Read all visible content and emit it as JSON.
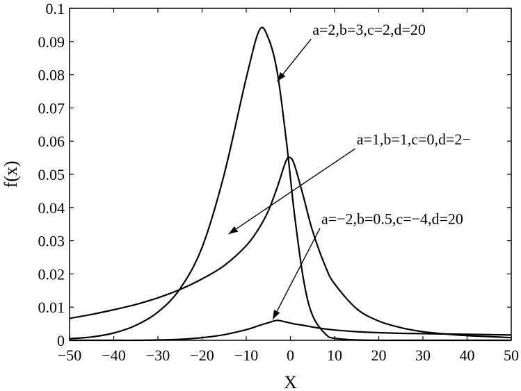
{
  "chart_data": {
    "type": "line",
    "title": "",
    "xlabel": "X",
    "ylabel": "f(x)",
    "xlim": [
      -50,
      50
    ],
    "ylim": [
      0,
      0.1
    ],
    "x_ticks": [
      "−50",
      "−40",
      "−30",
      "−20",
      "−10",
      "0",
      "10",
      "20",
      "30",
      "40",
      "50"
    ],
    "y_ticks": [
      "0",
      "0.01",
      "0.02",
      "0.03",
      "0.04",
      "0.05",
      "0.06",
      "0.07",
      "0.08",
      "0.09",
      "0.1"
    ],
    "grid": false,
    "legend": "none",
    "x": [
      -50,
      -45,
      -40,
      -35,
      -30,
      -25,
      -20,
      -15,
      -10,
      -7,
      -5,
      -3,
      -1,
      0,
      1,
      3,
      5,
      8,
      10,
      15,
      20,
      25,
      30,
      35,
      40,
      45,
      50
    ],
    "series": [
      {
        "values": [
          0.0005,
          0.001,
          0.0022,
          0.0045,
          0.0085,
          0.0155,
          0.028,
          0.05,
          0.079,
          0.0935,
          0.091,
          0.081,
          0.061,
          0.049,
          0.037,
          0.018,
          0.0075,
          0.0018,
          0.0006,
          0.0001,
          0.0,
          0.0,
          0.0,
          0.0,
          0.0,
          0.0,
          0.0
        ]
      },
      {
        "values": [
          0.0066,
          0.0078,
          0.0092,
          0.0108,
          0.0128,
          0.0153,
          0.0185,
          0.0225,
          0.0285,
          0.034,
          0.039,
          0.046,
          0.054,
          0.055,
          0.0525,
          0.043,
          0.033,
          0.022,
          0.017,
          0.0095,
          0.0058,
          0.0038,
          0.0026,
          0.0019,
          0.0014,
          0.0011,
          0.0008
        ]
      },
      {
        "values": [
          0.0,
          0.0,
          0.0,
          0.0,
          0.0001,
          0.0003,
          0.0008,
          0.0017,
          0.0032,
          0.0045,
          0.0053,
          0.006,
          0.0055,
          0.0052,
          0.0049,
          0.0045,
          0.004,
          0.0034,
          0.0031,
          0.0026,
          0.0023,
          0.0021,
          0.002,
          0.0019,
          0.0018,
          0.0017,
          0.0016
        ]
      }
    ],
    "annotations": [
      {
        "text": "a=2,b=3,c=2,d=20",
        "x": 5,
        "y": 0.092,
        "arrow_to": {
          "x": -3,
          "y": 0.078
        }
      },
      {
        "text": "a=1,b=1,c=0,d=2−",
        "x": 15,
        "y": 0.059,
        "arrow_to": {
          "x": -14,
          "y": 0.032
        }
      },
      {
        "text": "a=−2,b=0.5,c=−4,d=20",
        "x": 7,
        "y": 0.035,
        "arrow_to": {
          "x": -4,
          "y": 0.0063
        }
      }
    ]
  }
}
